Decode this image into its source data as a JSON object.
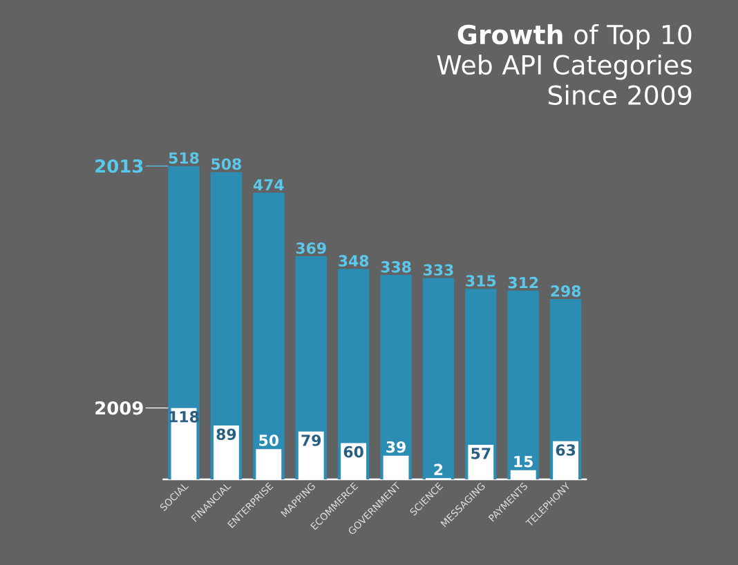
{
  "chart_data": {
    "type": "bar",
    "title": "**Growth** of Top 10 Web API Categories Since 2009",
    "categories": [
      "SOCIAL",
      "FINANCIAL",
      "ENTERPRISE",
      "MAPPING",
      "ECOMMERCE",
      "GOVERNMENT",
      "SCIENCE",
      "MESSAGING",
      "PAYMENTS",
      "TELEPHONY"
    ],
    "series": [
      {
        "name": "2013",
        "color": "#2b8db3",
        "values": [
          518,
          508,
          474,
          369,
          348,
          338,
          333,
          315,
          312,
          298
        ]
      },
      {
        "name": "2009",
        "color": "#ffffff",
        "values": [
          118,
          89,
          50,
          79,
          60,
          39,
          2,
          57,
          15,
          63
        ]
      }
    ],
    "data_labels": true
  }
}
